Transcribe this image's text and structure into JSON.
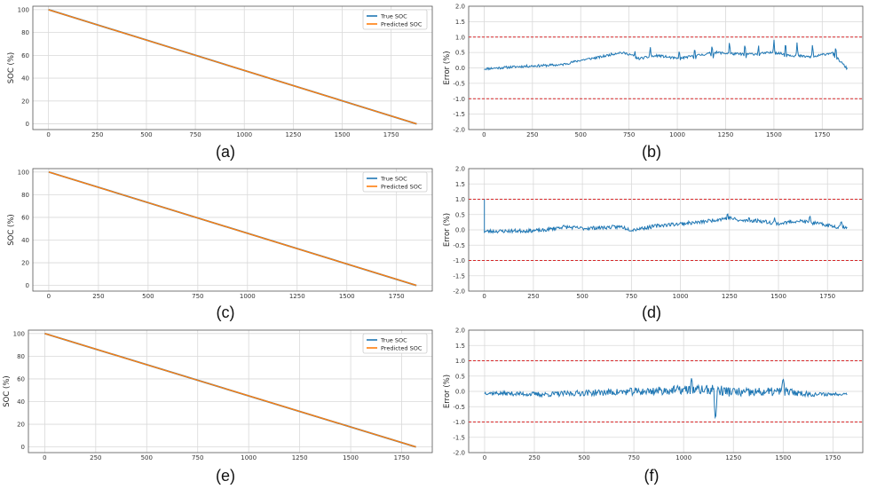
{
  "colors": {
    "true_soc": "#1f77b4",
    "predicted_soc": "#ff7f0e",
    "error": "#1f77b4",
    "limit": "#d62728"
  },
  "chart_data": [
    {
      "panel": "a",
      "caption": "(a)",
      "type": "line",
      "title": "",
      "xlabel": "",
      "ylabel": "SOC (%)",
      "xlim": [
        -80,
        1960
      ],
      "ylim": [
        -5,
        103
      ],
      "xticks": [
        "0",
        "250",
        "500",
        "750",
        "1000",
        "1250",
        "1500",
        "1750"
      ],
      "yticks": [
        "0",
        "20",
        "40",
        "60",
        "80",
        "100"
      ],
      "grid": true,
      "legend_position": "top-right",
      "series": [
        {
          "name": "True SOC",
          "x": [
            0,
            1880
          ],
          "values": [
            100,
            0
          ]
        },
        {
          "name": "Predicted SOC",
          "x": [
            0,
            1880
          ],
          "values": [
            100,
            0
          ]
        }
      ]
    },
    {
      "panel": "b",
      "caption": "(b)",
      "type": "line",
      "title": "",
      "xlabel": "",
      "ylabel": "Error (%)",
      "xlim": [
        -80,
        1960
      ],
      "ylim": [
        -2.0,
        2.0
      ],
      "xticks": [
        "0",
        "250",
        "500",
        "750",
        "1000",
        "1250",
        "1500",
        "1750"
      ],
      "yticks": [
        "-2.0",
        "-1.5",
        "-1.0",
        "-0.5",
        "0.0",
        "0.5",
        "1.0",
        "1.5",
        "2.0"
      ],
      "grid": true,
      "limits": [
        1.0,
        -1.0
      ],
      "series": [
        {
          "name": "Error",
          "x_max": 1880,
          "seed": 11,
          "profile": [
            [
              0,
              -0.03
            ],
            [
              200,
              0.05
            ],
            [
              400,
              0.1
            ],
            [
              500,
              0.25
            ],
            [
              600,
              0.35
            ],
            [
              700,
              0.5
            ],
            [
              750,
              0.45
            ],
            [
              800,
              0.3
            ],
            [
              900,
              0.4
            ],
            [
              1000,
              0.3
            ],
            [
              1100,
              0.4
            ],
            [
              1200,
              0.5
            ],
            [
              1300,
              0.45
            ],
            [
              1400,
              0.45
            ],
            [
              1500,
              0.5
            ],
            [
              1600,
              0.4
            ],
            [
              1700,
              0.35
            ],
            [
              1800,
              0.5
            ],
            [
              1880,
              -0.03
            ]
          ],
          "noise": 0.04,
          "spikes": [
            [
              780,
              0.6,
              0.2
            ],
            [
              860,
              0.7,
              0.3
            ],
            [
              1010,
              0.6,
              0.25
            ],
            [
              1090,
              0.7,
              0.25
            ],
            [
              1180,
              0.8,
              0.3
            ],
            [
              1270,
              0.9,
              0.35
            ],
            [
              1350,
              0.85,
              0.3
            ],
            [
              1420,
              0.8,
              0.25
            ],
            [
              1500,
              0.95,
              0.35
            ],
            [
              1560,
              0.9,
              0.3
            ],
            [
              1620,
              0.85,
              0.3
            ],
            [
              1700,
              0.8,
              0.3
            ],
            [
              1820,
              0.75,
              0.25
            ]
          ]
        }
      ]
    },
    {
      "panel": "c",
      "caption": "(c)",
      "type": "line",
      "title": "",
      "xlabel": "",
      "ylabel": "SOC (%)",
      "xlim": [
        -80,
        1930
      ],
      "ylim": [
        -5,
        103
      ],
      "xticks": [
        "0",
        "250",
        "500",
        "750",
        "1000",
        "1250",
        "1500",
        "1750"
      ],
      "yticks": [
        "0",
        "20",
        "40",
        "60",
        "80",
        "100"
      ],
      "grid": true,
      "legend_position": "top-right",
      "series": [
        {
          "name": "True SOC",
          "x": [
            0,
            1850
          ],
          "values": [
            100,
            0
          ]
        },
        {
          "name": "Predicted SOC",
          "x": [
            0,
            1850
          ],
          "values": [
            100,
            0
          ]
        }
      ]
    },
    {
      "panel": "d",
      "caption": "(d)",
      "type": "line",
      "title": "",
      "xlabel": "",
      "ylabel": "Error (%)",
      "xlim": [
        -80,
        1930
      ],
      "ylim": [
        -2.0,
        2.0
      ],
      "xticks": [
        "0",
        "250",
        "500",
        "750",
        "1000",
        "1250",
        "1500",
        "1750"
      ],
      "yticks": [
        "-2.0",
        "-1.5",
        "-1.0",
        "-0.5",
        "0.0",
        "0.5",
        "1.0",
        "1.5",
        "2.0"
      ],
      "grid": true,
      "limits": [
        1.0,
        -1.0
      ],
      "series": [
        {
          "name": "Error",
          "x_max": 1850,
          "seed": 23,
          "initial_spike": 1.0,
          "profile": [
            [
              0,
              -0.05
            ],
            [
              300,
              -0.02
            ],
            [
              400,
              0.1
            ],
            [
              500,
              0.05
            ],
            [
              700,
              0.1
            ],
            [
              750,
              0.0
            ],
            [
              900,
              0.15
            ],
            [
              1000,
              0.2
            ],
            [
              1100,
              0.25
            ],
            [
              1200,
              0.35
            ],
            [
              1250,
              0.4
            ],
            [
              1300,
              0.3
            ],
            [
              1400,
              0.3
            ],
            [
              1500,
              0.2
            ],
            [
              1600,
              0.3
            ],
            [
              1700,
              0.2
            ],
            [
              1800,
              0.1
            ],
            [
              1850,
              0.1
            ]
          ],
          "noise": 0.06,
          "spikes": [
            [
              1240,
              0.6,
              0.3
            ],
            [
              1350,
              0.45,
              0.25
            ],
            [
              1480,
              0.4,
              0.2
            ],
            [
              1660,
              0.5,
              0.25
            ],
            [
              1820,
              0.3,
              0.15
            ]
          ]
        }
      ]
    },
    {
      "panel": "e",
      "caption": "(e)",
      "type": "line",
      "title": "",
      "xlabel": "",
      "ylabel": "SOC (%)",
      "xlim": [
        -80,
        1900
      ],
      "ylim": [
        -5,
        103
      ],
      "xticks": [
        "0",
        "250",
        "500",
        "750",
        "1000",
        "1250",
        "1500",
        "1750"
      ],
      "yticks": [
        "0",
        "20",
        "40",
        "60",
        "80",
        "100"
      ],
      "grid": true,
      "legend_position": "top-right",
      "series": [
        {
          "name": "True SOC",
          "x": [
            0,
            1820
          ],
          "values": [
            100,
            0
          ]
        },
        {
          "name": "Predicted SOC",
          "x": [
            0,
            1820
          ],
          "values": [
            100,
            0
          ]
        }
      ]
    },
    {
      "panel": "f",
      "caption": "(f)",
      "type": "line",
      "title": "",
      "xlabel": "",
      "ylabel": "Error (%)",
      "xlim": [
        -80,
        1900
      ],
      "ylim": [
        -2.0,
        2.0
      ],
      "xticks": [
        "0",
        "250",
        "500",
        "750",
        "1000",
        "1250",
        "1500",
        "1750"
      ],
      "yticks": [
        "-2.0",
        "-1.5",
        "-1.0",
        "-0.5",
        "0.0",
        "0.5",
        "1.0",
        "1.5",
        "2.0"
      ],
      "grid": true,
      "limits": [
        1.0,
        -1.0
      ],
      "series": [
        {
          "name": "Error",
          "x_max": 1820,
          "seed": 37,
          "profile": [
            [
              0,
              -0.05
            ],
            [
              300,
              -0.1
            ],
            [
              500,
              -0.05
            ],
            [
              800,
              0.0
            ],
            [
              1000,
              0.05
            ],
            [
              1150,
              0.05
            ],
            [
              1300,
              -0.05
            ],
            [
              1500,
              0.0
            ],
            [
              1650,
              -0.1
            ],
            [
              1820,
              -0.08
            ]
          ],
          "noise": 0.14,
          "noise_profile": [
            [
              0,
              0.4
            ],
            [
              500,
              0.7
            ],
            [
              900,
              1.0
            ],
            [
              1200,
              1.2
            ],
            [
              1500,
              1.0
            ],
            [
              1650,
              0.5
            ],
            [
              1820,
              0.3
            ]
          ],
          "spikes": [
            [
              1160,
              -1.0,
              -0.4
            ],
            [
              1500,
              0.45,
              0.2
            ],
            [
              1040,
              0.45,
              0.2
            ]
          ]
        }
      ]
    }
  ]
}
